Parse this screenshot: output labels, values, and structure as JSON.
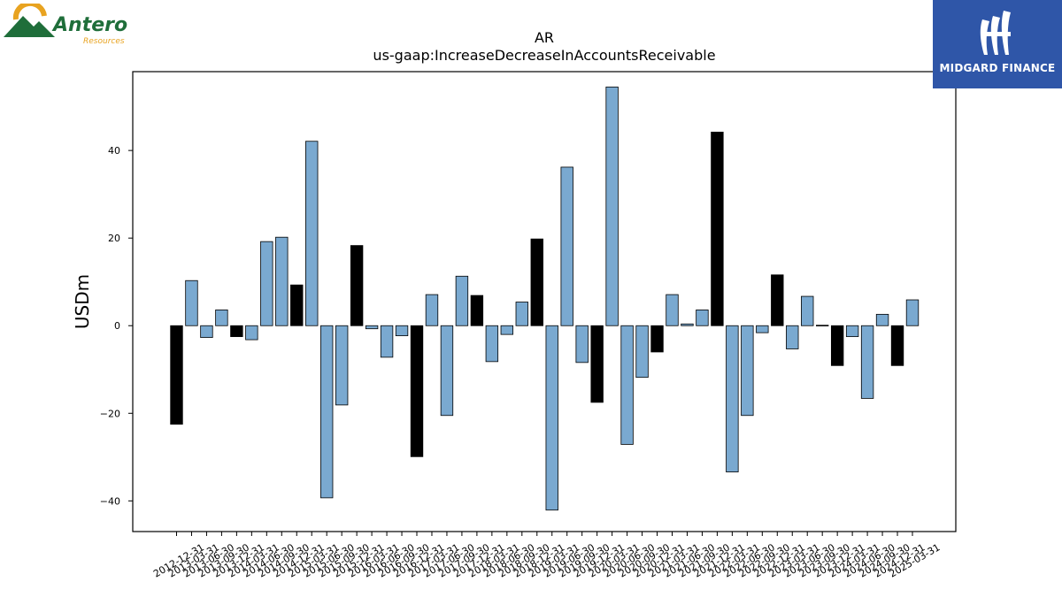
{
  "logos": {
    "left": {
      "name": "Antero",
      "subtitle": "Resources"
    },
    "right": {
      "name": "MIDGARD FINANCE"
    }
  },
  "colors": {
    "positive": "#7aa9d0",
    "negative_highlight": "#000000",
    "edge": "#000000"
  },
  "chart_data": {
    "type": "bar",
    "title": "AR",
    "subtitle": "us-gaap:IncreaseDecreaseInAccountsReceivable",
    "xlabel": "",
    "ylabel": "USDm",
    "ylim": [
      -47,
      58
    ],
    "yticks": [
      -40,
      -20,
      0,
      20,
      40
    ],
    "grid": false,
    "categories": [
      "2012-12-31",
      "2013-03-31",
      "2013-06-30",
      "2013-09-30",
      "2013-12-31",
      "2014-03-31",
      "2014-06-30",
      "2014-09-30",
      "2014-12-31",
      "2015-03-31",
      "2015-06-30",
      "2015-09-30",
      "2015-12-31",
      "2016-03-31",
      "2016-06-30",
      "2016-09-30",
      "2016-12-31",
      "2017-03-31",
      "2017-06-30",
      "2017-09-30",
      "2017-12-31",
      "2018-03-31",
      "2018-06-30",
      "2018-09-30",
      "2018-12-31",
      "2019-03-31",
      "2019-06-30",
      "2019-09-30",
      "2019-12-31",
      "2020-03-31",
      "2020-06-30",
      "2020-09-30",
      "2020-12-31",
      "2021-03-31",
      "2021-06-30",
      "2021-09-30",
      "2021-12-31",
      "2022-03-31",
      "2022-06-30",
      "2022-09-30",
      "2022-12-31",
      "2023-03-31",
      "2023-06-30",
      "2023-09-30",
      "2023-12-31",
      "2024-03-31",
      "2024-06-30",
      "2024-09-30",
      "2024-12-31",
      "2025-03-31"
    ],
    "values": [
      -22.5,
      10.3,
      -2.7,
      3.6,
      -2.5,
      -3.2,
      19.2,
      20.2,
      9.3,
      42.1,
      -39.3,
      -18.1,
      18.3,
      -0.7,
      -7.2,
      -2.3,
      -29.9,
      7.1,
      -20.5,
      11.3,
      6.9,
      -8.2,
      -2.0,
      5.4,
      19.8,
      -42.1,
      36.2,
      -8.4,
      -17.5,
      54.5,
      -27.1,
      -11.8,
      -6.0,
      7.1,
      0.4,
      3.6,
      44.2,
      -33.4,
      -20.5,
      -1.6,
      11.6,
      -5.3,
      6.7,
      0.1,
      -9.1,
      -2.5,
      -16.6,
      2.6,
      -9.1,
      5.9
    ],
    "highlight": [
      true,
      false,
      false,
      false,
      true,
      false,
      false,
      false,
      true,
      false,
      false,
      false,
      true,
      false,
      false,
      false,
      true,
      false,
      false,
      false,
      true,
      false,
      false,
      false,
      true,
      false,
      false,
      false,
      true,
      false,
      false,
      false,
      true,
      false,
      false,
      false,
      true,
      false,
      false,
      false,
      true,
      false,
      false,
      false,
      true,
      false,
      false,
      false,
      true,
      false
    ]
  }
}
